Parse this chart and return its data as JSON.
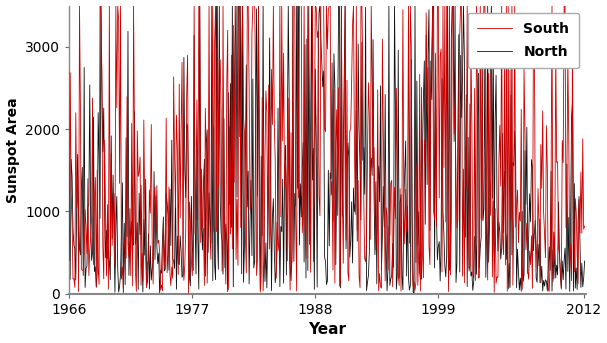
{
  "xlabel": "Year",
  "ylabel": "Sunspot Area",
  "xlim": [
    1966,
    2012.2
  ],
  "ylim": [
    0,
    3500
  ],
  "yticks": [
    0,
    1000,
    2000,
    3000
  ],
  "xticks": [
    1966,
    1977,
    1988,
    1999,
    2012
  ],
  "south_color": "#cc0000",
  "north_color": "#111111",
  "legend_south": "South",
  "legend_north": "North",
  "background_color": "#ffffff",
  "linewidth": 0.6,
  "seed": 42
}
